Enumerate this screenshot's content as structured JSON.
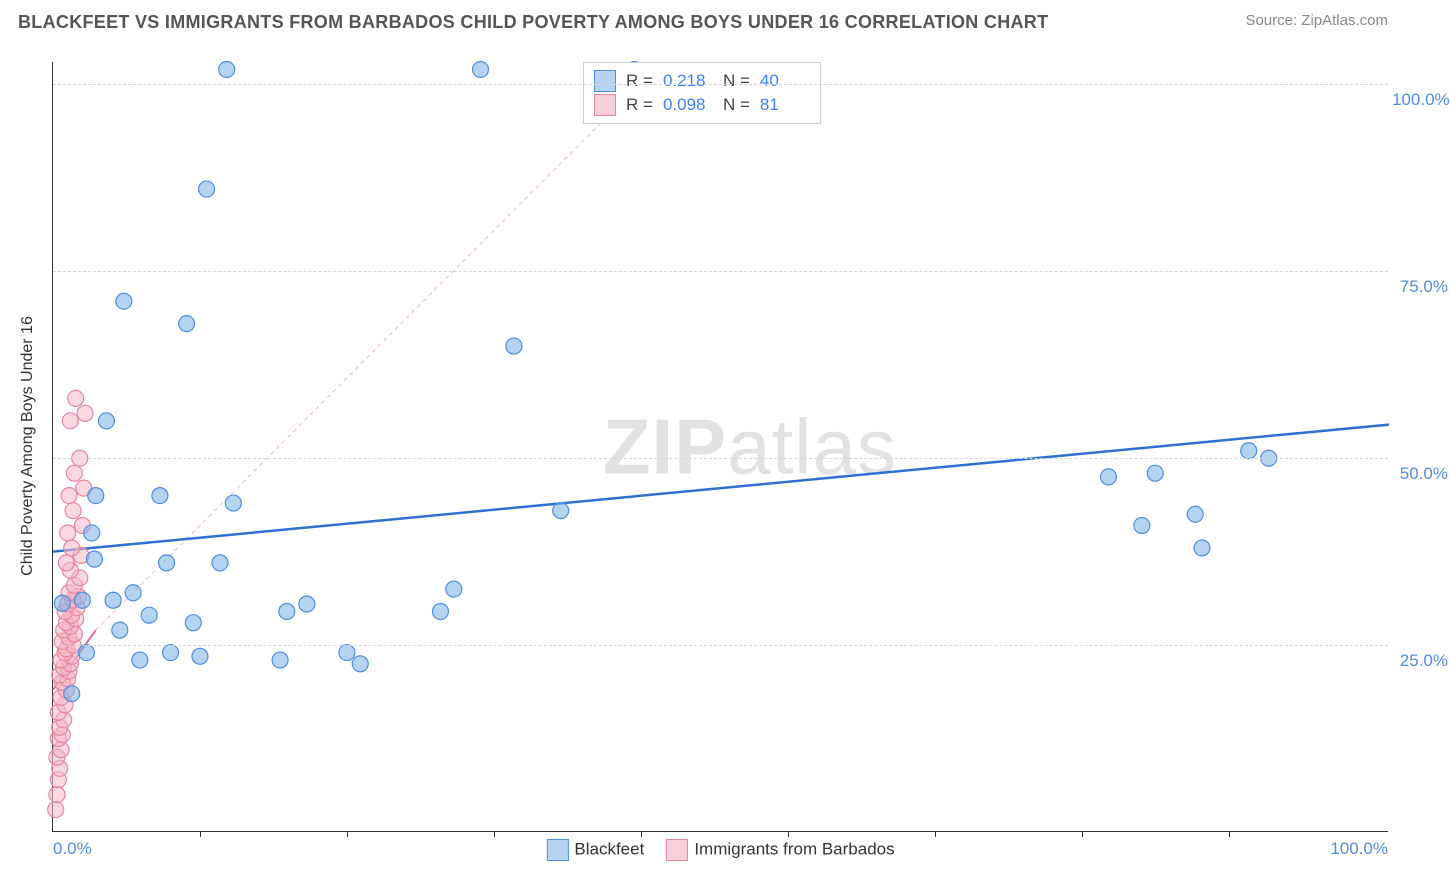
{
  "title": "BLACKFEET VS IMMIGRANTS FROM BARBADOS CHILD POVERTY AMONG BOYS UNDER 16 CORRELATION CHART",
  "source_label": "Source: ZipAtlas.com",
  "y_axis_title": "Child Poverty Among Boys Under 16",
  "watermark_bold": "ZIP",
  "watermark_rest": "atlas",
  "chart": {
    "type": "scatter",
    "xlim": [
      0,
      100
    ],
    "ylim": [
      0,
      103
    ],
    "x_ticks_minor": [
      11,
      22,
      33,
      44,
      55,
      66,
      77,
      88
    ],
    "x_start_label": "0.0%",
    "x_end_label": "100.0%",
    "y_gridlines": [
      25,
      50,
      75,
      100
    ],
    "y_tick_labels": [
      "25.0%",
      "50.0%",
      "75.0%",
      "100.0%"
    ],
    "y_label_color": "#4f8de0",
    "x_label_color": "#4f8de0",
    "background_color": "#ffffff",
    "grid_color": "#d6d6d6",
    "marker_radius": 8,
    "marker_stroke_width": 1.2,
    "marker_fill_opacity": 0.55,
    "series": [
      {
        "name": "Blackfeet",
        "color": "#77b0e8",
        "stroke": "#4f8de0",
        "stats": {
          "R": "0.218",
          "N": "40"
        },
        "trend": {
          "x1": 0,
          "y1": 37.5,
          "x2": 100,
          "y2": 54.5,
          "color": "#2f6fd1",
          "width": 2.5,
          "dash": null
        },
        "points": [
          [
            0.7,
            30.6
          ],
          [
            1.4,
            18.5
          ],
          [
            2.2,
            31.0
          ],
          [
            2.5,
            24.0
          ],
          [
            2.9,
            40.0
          ],
          [
            3.2,
            45.0
          ],
          [
            3.1,
            36.5
          ],
          [
            4.0,
            55.0
          ],
          [
            4.5,
            31.0
          ],
          [
            5.0,
            27.0
          ],
          [
            5.3,
            71.0
          ],
          [
            6.0,
            32.0
          ],
          [
            6.5,
            23.0
          ],
          [
            7.2,
            29.0
          ],
          [
            8.0,
            45.0
          ],
          [
            8.5,
            36.0
          ],
          [
            8.8,
            24.0
          ],
          [
            10.0,
            68.0
          ],
          [
            10.5,
            28.0
          ],
          [
            11.0,
            23.5
          ],
          [
            11.5,
            86.0
          ],
          [
            12.5,
            36.0
          ],
          [
            13.0,
            102.0
          ],
          [
            13.5,
            44.0
          ],
          [
            17.0,
            23.0
          ],
          [
            17.5,
            29.5
          ],
          [
            19.0,
            30.5
          ],
          [
            22.0,
            24.0
          ],
          [
            23.0,
            22.5
          ],
          [
            29.0,
            29.5
          ],
          [
            30.0,
            32.5
          ],
          [
            32.0,
            102.0
          ],
          [
            34.5,
            65.0
          ],
          [
            38.0,
            43.0
          ],
          [
            43.5,
            102.0
          ],
          [
            79.0,
            47.5
          ],
          [
            81.5,
            41.0
          ],
          [
            82.5,
            48.0
          ],
          [
            85.5,
            42.5
          ],
          [
            86.0,
            38.0
          ],
          [
            89.5,
            51.0
          ],
          [
            91.0,
            50.0
          ]
        ]
      },
      {
        "name": "Immigrants from Barbados",
        "color": "#f6b8c4",
        "stroke": "#e685a0",
        "stats": {
          "R": "0.098",
          "N": "81"
        },
        "trend": {
          "x1": 0,
          "y1": 19.0,
          "x2": 3.2,
          "y2": 27.0,
          "color": "#e06c8a",
          "width": 2,
          "dash": null
        },
        "trend_ext": {
          "x1": 3.2,
          "y1": 27.0,
          "x2": 45,
          "y2": 102.0,
          "color": "#f2c0ca",
          "width": 1.2,
          "dash": "4 4"
        },
        "points": [
          [
            0.2,
            3.0
          ],
          [
            0.3,
            5.0
          ],
          [
            0.4,
            7.0
          ],
          [
            0.5,
            8.5
          ],
          [
            0.3,
            10.0
          ],
          [
            0.6,
            11.0
          ],
          [
            0.4,
            12.5
          ],
          [
            0.7,
            13.0
          ],
          [
            0.5,
            14.0
          ],
          [
            0.8,
            15.0
          ],
          [
            0.4,
            16.0
          ],
          [
            0.9,
            17.0
          ],
          [
            0.6,
            18.0
          ],
          [
            1.0,
            19.0
          ],
          [
            0.7,
            20.0
          ],
          [
            1.1,
            20.5
          ],
          [
            0.5,
            21.0
          ],
          [
            1.2,
            21.5
          ],
          [
            0.8,
            22.0
          ],
          [
            1.3,
            22.5
          ],
          [
            0.6,
            23.0
          ],
          [
            1.4,
            23.5
          ],
          [
            0.9,
            24.0
          ],
          [
            1.0,
            24.5
          ],
          [
            1.5,
            25.0
          ],
          [
            0.7,
            25.5
          ],
          [
            1.2,
            26.0
          ],
          [
            1.6,
            26.5
          ],
          [
            0.8,
            27.0
          ],
          [
            1.3,
            27.5
          ],
          [
            1.0,
            28.0
          ],
          [
            1.7,
            28.5
          ],
          [
            1.4,
            29.0
          ],
          [
            0.9,
            29.5
          ],
          [
            1.8,
            30.0
          ],
          [
            1.1,
            30.5
          ],
          [
            1.5,
            31.0
          ],
          [
            1.9,
            31.5
          ],
          [
            1.2,
            32.0
          ],
          [
            1.6,
            33.0
          ],
          [
            2.0,
            34.0
          ],
          [
            1.3,
            35.0
          ],
          [
            1.0,
            36.0
          ],
          [
            2.1,
            37.0
          ],
          [
            1.4,
            38.0
          ],
          [
            1.1,
            40.0
          ],
          [
            2.2,
            41.0
          ],
          [
            1.5,
            43.0
          ],
          [
            1.2,
            45.0
          ],
          [
            2.3,
            46.0
          ],
          [
            1.6,
            48.0
          ],
          [
            2.0,
            50.0
          ],
          [
            1.3,
            55.0
          ],
          [
            2.4,
            56.0
          ],
          [
            1.7,
            58.0
          ]
        ]
      }
    ]
  },
  "legend_top": {
    "border_color": "#cccccc",
    "rows": [
      {
        "swatch_fill": "#b7d3f2",
        "swatch_stroke": "#4f8de0",
        "R_label": "R =",
        "R_value": "0.218",
        "N_label": "N =",
        "N_value": "40"
      },
      {
        "swatch_fill": "#f8cfd8",
        "swatch_stroke": "#e685a0",
        "R_label": "R =",
        "R_value": "0.098",
        "N_label": "N =",
        "N_value": "81"
      }
    ]
  },
  "legend_bottom": {
    "items": [
      {
        "swatch_fill": "#b7d3f2",
        "swatch_stroke": "#4f8de0",
        "label": "Blackfeet"
      },
      {
        "swatch_fill": "#f8cfd8",
        "swatch_stroke": "#e685a0",
        "label": "Immigrants from Barbados"
      }
    ]
  }
}
